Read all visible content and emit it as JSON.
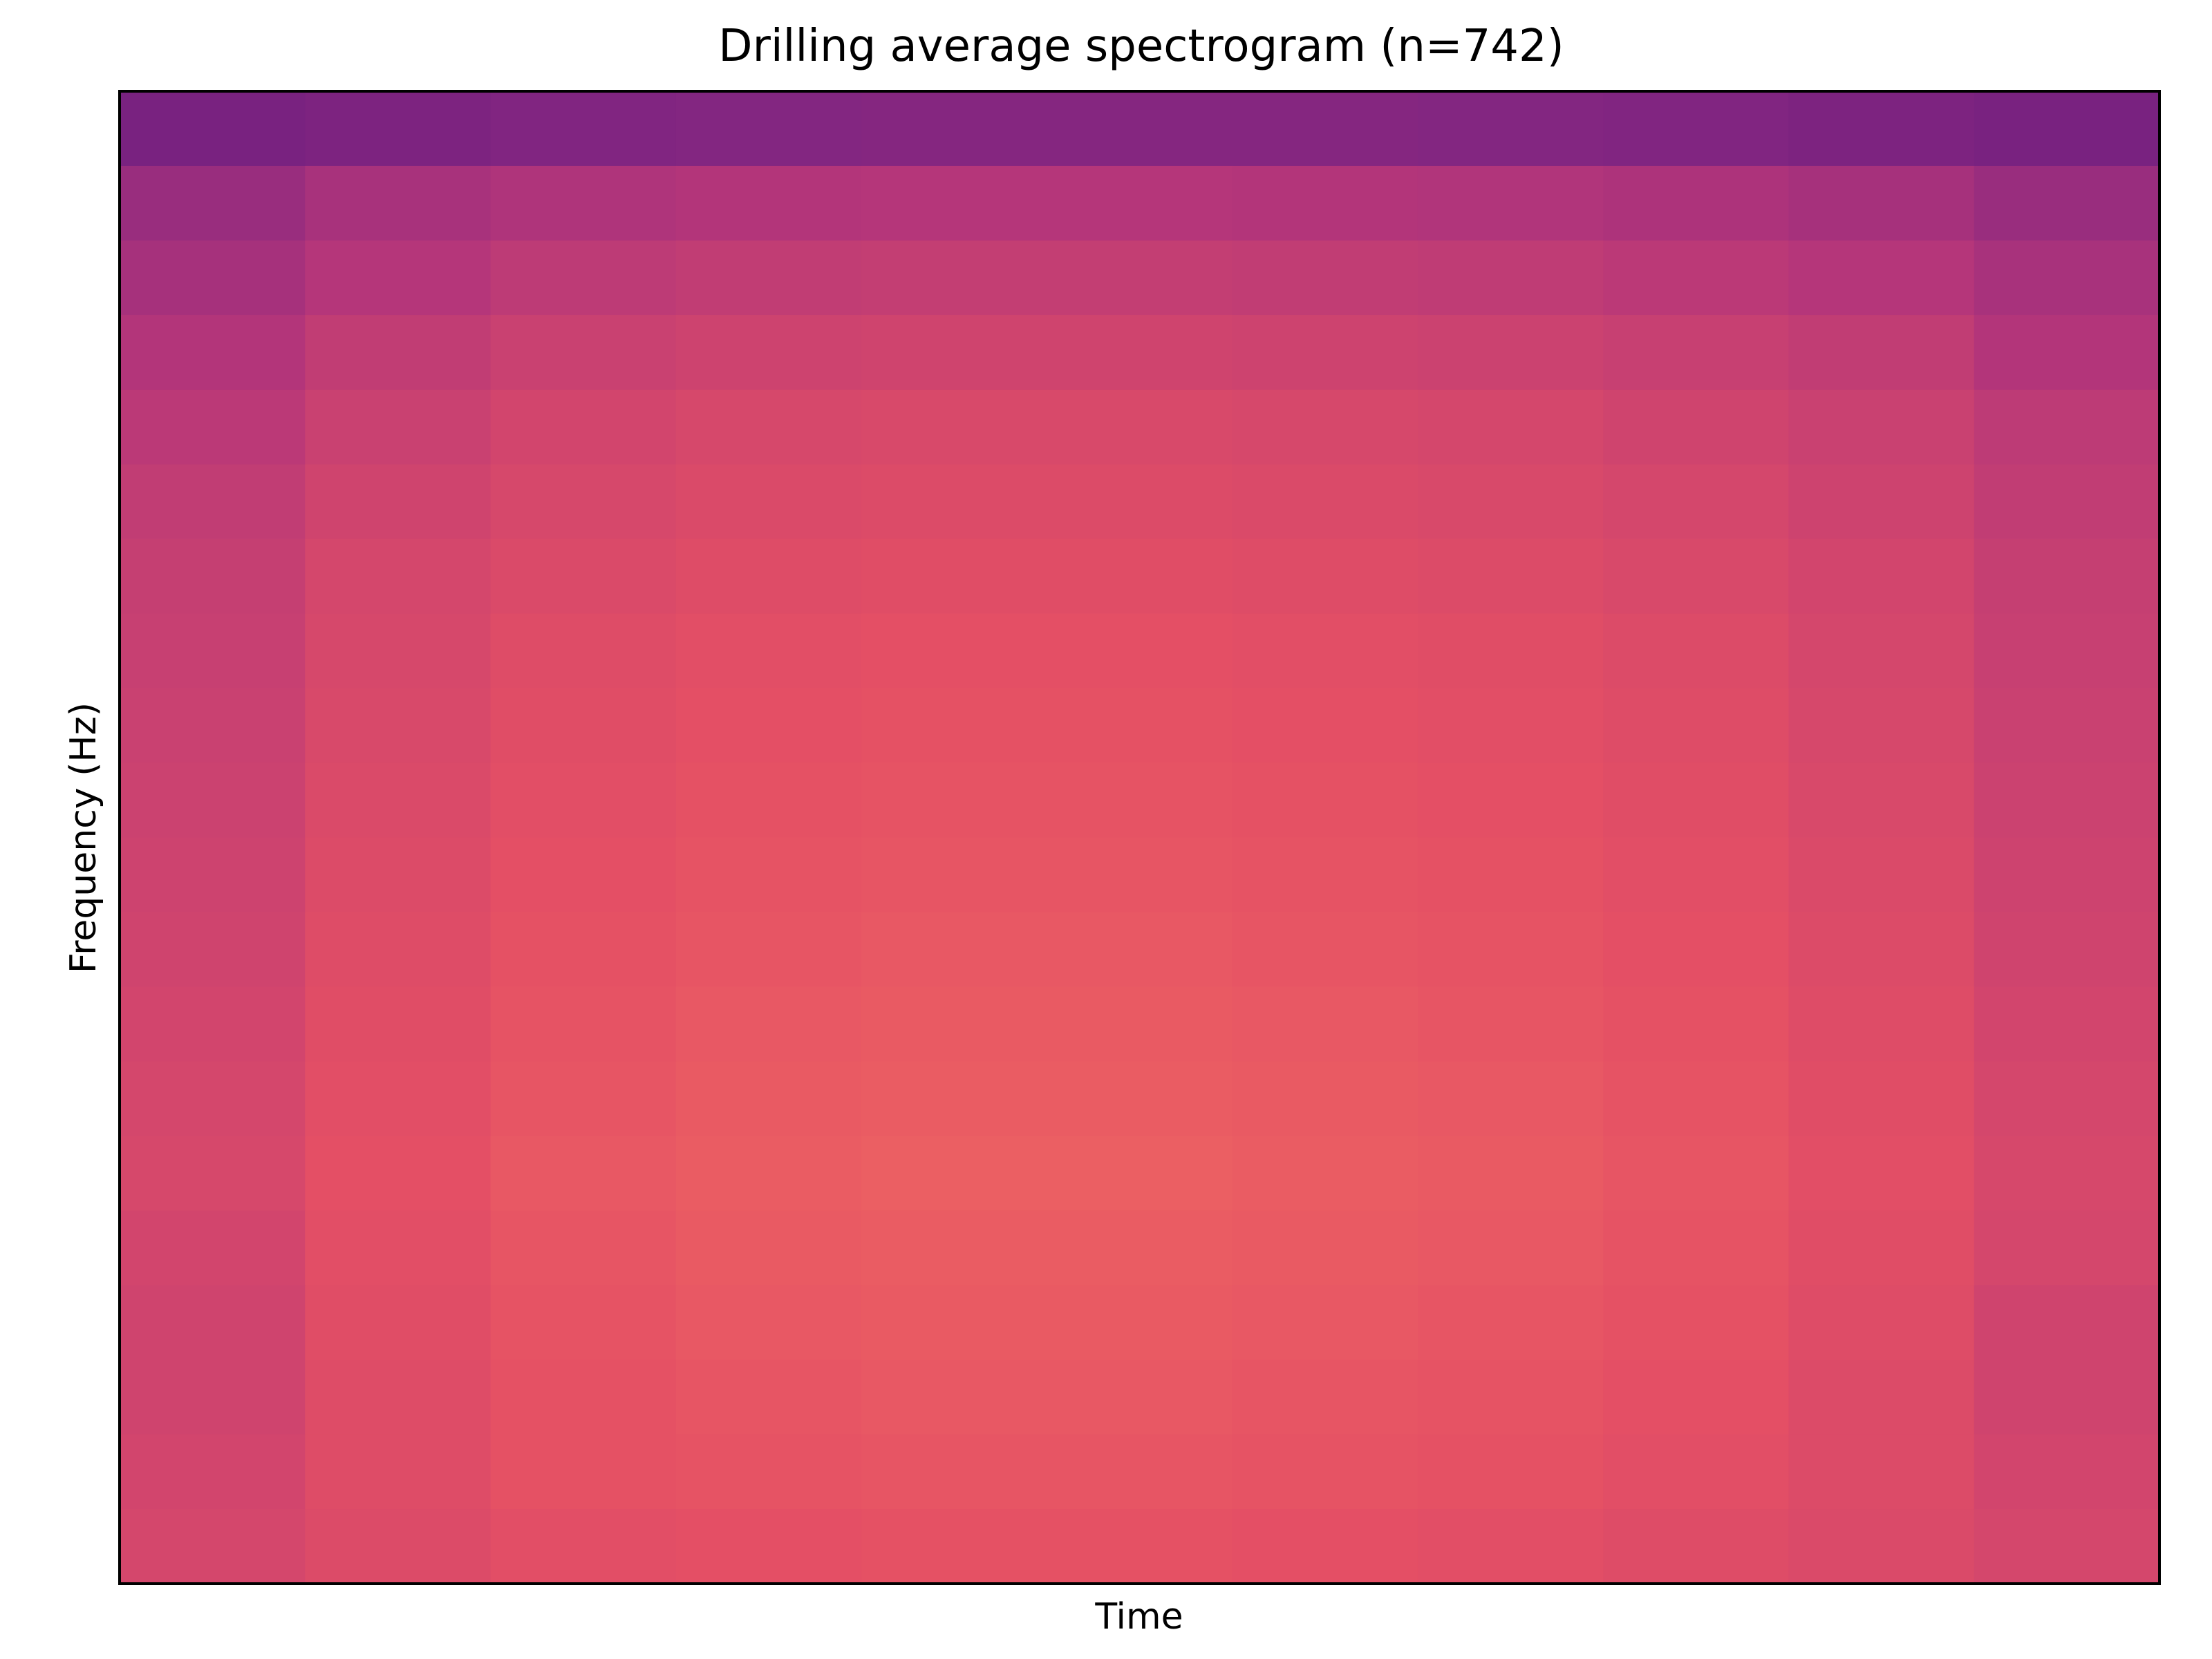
{
  "chart_data": {
    "type": "heatmap",
    "title": "Drilling average spectrogram (n=742)",
    "xlabel": "Time",
    "ylabel": "Frequency (Hz)",
    "x_ticks": [],
    "y_ticks": [],
    "grid": false,
    "legend": "none",
    "colormap": "magma",
    "value_range": [
      0,
      1
    ],
    "rows_top_to_bottom": [
      [
        0.15,
        0.17,
        0.19,
        0.2,
        0.21,
        0.21,
        0.21,
        0.2,
        0.19,
        0.17,
        0.15
      ],
      [
        0.3,
        0.37,
        0.4,
        0.42,
        0.43,
        0.43,
        0.42,
        0.41,
        0.39,
        0.36,
        0.3
      ],
      [
        0.36,
        0.43,
        0.47,
        0.49,
        0.5,
        0.5,
        0.49,
        0.48,
        0.46,
        0.43,
        0.37
      ],
      [
        0.42,
        0.49,
        0.53,
        0.55,
        0.56,
        0.56,
        0.55,
        0.54,
        0.52,
        0.49,
        0.42
      ],
      [
        0.46,
        0.53,
        0.57,
        0.59,
        0.6,
        0.6,
        0.59,
        0.58,
        0.56,
        0.53,
        0.47
      ],
      [
        0.49,
        0.56,
        0.59,
        0.61,
        0.62,
        0.62,
        0.61,
        0.6,
        0.58,
        0.55,
        0.49
      ],
      [
        0.51,
        0.58,
        0.61,
        0.63,
        0.64,
        0.64,
        0.63,
        0.62,
        0.6,
        0.57,
        0.51
      ],
      [
        0.52,
        0.59,
        0.63,
        0.65,
        0.66,
        0.66,
        0.65,
        0.64,
        0.62,
        0.58,
        0.52
      ],
      [
        0.53,
        0.6,
        0.64,
        0.66,
        0.67,
        0.67,
        0.66,
        0.65,
        0.63,
        0.59,
        0.53
      ],
      [
        0.54,
        0.61,
        0.65,
        0.67,
        0.68,
        0.68,
        0.67,
        0.66,
        0.64,
        0.6,
        0.54
      ],
      [
        0.55,
        0.62,
        0.66,
        0.68,
        0.69,
        0.69,
        0.68,
        0.67,
        0.65,
        0.61,
        0.55
      ],
      [
        0.56,
        0.63,
        0.67,
        0.69,
        0.7,
        0.7,
        0.69,
        0.68,
        0.66,
        0.62,
        0.56
      ],
      [
        0.57,
        0.64,
        0.68,
        0.7,
        0.71,
        0.71,
        0.7,
        0.69,
        0.67,
        0.63,
        0.57
      ],
      [
        0.58,
        0.65,
        0.69,
        0.71,
        0.72,
        0.72,
        0.71,
        0.7,
        0.68,
        0.64,
        0.58
      ],
      [
        0.59,
        0.66,
        0.7,
        0.72,
        0.73,
        0.73,
        0.72,
        0.71,
        0.69,
        0.65,
        0.59
      ],
      [
        0.57,
        0.65,
        0.69,
        0.71,
        0.72,
        0.72,
        0.71,
        0.7,
        0.68,
        0.64,
        0.58
      ],
      [
        0.56,
        0.64,
        0.68,
        0.7,
        0.71,
        0.71,
        0.7,
        0.69,
        0.67,
        0.63,
        0.56
      ],
      [
        0.56,
        0.63,
        0.67,
        0.69,
        0.7,
        0.7,
        0.69,
        0.68,
        0.66,
        0.62,
        0.56
      ],
      [
        0.57,
        0.63,
        0.67,
        0.68,
        0.69,
        0.69,
        0.68,
        0.67,
        0.65,
        0.62,
        0.57
      ],
      [
        0.58,
        0.62,
        0.65,
        0.66,
        0.67,
        0.67,
        0.66,
        0.65,
        0.63,
        0.61,
        0.58
      ]
    ]
  }
}
